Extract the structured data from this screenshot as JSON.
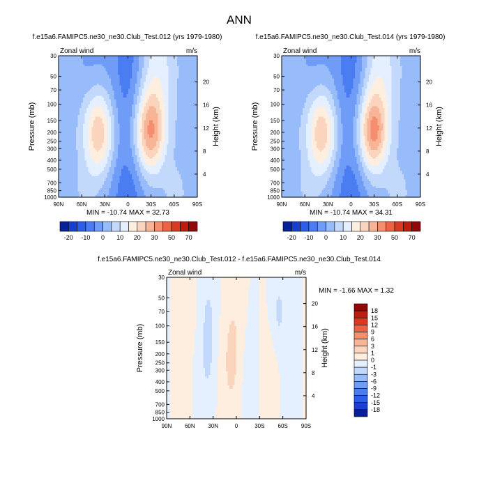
{
  "main_title": "ANN",
  "panels": [
    {
      "title": "f.e15a6.FAMIPC5.ne30_ne30.Club_Test.012 (yrs 1979-1980)",
      "left_string": "Zonal wind",
      "right_string": "m/s",
      "stats": "MIN = -10.74  MAX =  32.73"
    },
    {
      "title": "f.e15a6.FAMIPC5.ne30_ne30.Club_Test.014 (yrs 1979-1980)",
      "left_string": "Zonal wind",
      "right_string": "m/s",
      "stats": "MIN = -10.74  MAX =  34.31"
    },
    {
      "title": "f.e15a6.FAMIPC5.ne30_ne30.Club_Test.012 - f.e15a6.FAMIPC5.ne30_ne30.Club_Test.014",
      "left_string": "Zonal wind",
      "right_string": "m/s",
      "stats": "MIN = -1.66  MAX =  1.32"
    }
  ],
  "axes": {
    "y_label": "Pressure (mb)",
    "y2_label": "Height (km)",
    "x_ticks": [
      "90N",
      "60N",
      "30N",
      "0",
      "30S",
      "60S",
      "90S"
    ],
    "p_ticks": [
      "30",
      "50",
      "70",
      "100",
      "150",
      "200",
      "250",
      "300",
      "400",
      "500",
      "700",
      "850",
      "1000"
    ],
    "h_ticks": [
      "20",
      "16",
      "12",
      "8",
      "4"
    ]
  },
  "colorbar_abs": {
    "labels": [
      "-20",
      "-10",
      "0",
      "10",
      "20",
      "30",
      "50",
      "70"
    ],
    "colors": [
      "#08209a",
      "#1a3fd0",
      "#2c5ee8",
      "#4a7df2",
      "#6e9cf6",
      "#98bcf9",
      "#c3d9fb",
      "#e4efff",
      "#fdeee0",
      "#fbd4bd",
      "#f8b497",
      "#f48e6e",
      "#ec6344",
      "#d93a21",
      "#bb1d0f",
      "#92070a"
    ]
  },
  "colorbar_diff": {
    "labels": [
      "18",
      "15",
      "12",
      "9",
      "6",
      "3",
      "1",
      "0",
      "-1",
      "-3",
      "-6",
      "-9",
      "-12",
      "-15",
      "-18"
    ],
    "colors": [
      "#92070a",
      "#bb1d0f",
      "#d93a21",
      "#ec6344",
      "#f48e6e",
      "#f8b497",
      "#fbd4bd",
      "#fdeee0",
      "#e4efff",
      "#c3d9fb",
      "#98bcf9",
      "#6e9cf6",
      "#4a7df2",
      "#2c5ee8",
      "#1a3fd0",
      "#08209a"
    ]
  },
  "chart_data": [
    {
      "type": "heatmap",
      "title": "f.e15a6.FAMIPC5.ne30_ne30.Club_Test.012 (yrs 1979-1980)",
      "variable": "Zonal wind",
      "units": "m/s",
      "xlabel": "",
      "ylabel": "Pressure (mb)",
      "y2label": "Height (km)",
      "x_range": [
        90,
        -90
      ],
      "y_range": [
        1000,
        30
      ],
      "y_scale": "log",
      "min": -10.74,
      "max": 32.73,
      "features": [
        {
          "name": "southern jet core",
          "lat": -29,
          "pressure": 200,
          "value": 30
        },
        {
          "name": "northern jet core",
          "lat": 37,
          "pressure": 200,
          "value": 22
        },
        {
          "name": "tropical easterlies",
          "lat": 0,
          "pressure": 50,
          "value": -10
        }
      ]
    },
    {
      "type": "heatmap",
      "title": "f.e15a6.FAMIPC5.ne30_ne30.Club_Test.014 (yrs 1979-1980)",
      "variable": "Zonal wind",
      "units": "m/s",
      "xlabel": "",
      "ylabel": "Pressure (mb)",
      "y2label": "Height (km)",
      "x_range": [
        90,
        -90
      ],
      "y_range": [
        1000,
        30
      ],
      "y_scale": "log",
      "min": -10.74,
      "max": 34.31,
      "features": [
        {
          "name": "southern jet core",
          "lat": -29,
          "pressure": 200,
          "value": 30
        },
        {
          "name": "northern jet core",
          "lat": 37,
          "pressure": 200,
          "value": 22
        },
        {
          "name": "tropical easterlies",
          "lat": 0,
          "pressure": 50,
          "value": -10
        }
      ]
    },
    {
      "type": "heatmap",
      "title": "f.e15a6.FAMIPC5.ne30_ne30.Club_Test.012 - f.e15a6.FAMIPC5.ne30_ne30.Club_Test.014",
      "variable": "Zonal wind",
      "units": "m/s",
      "xlabel": "",
      "ylabel": "Pressure (mb)",
      "y2label": "Height (km)",
      "x_range": [
        90,
        -90
      ],
      "y_range": [
        1000,
        30
      ],
      "y_scale": "log",
      "min": -1.66,
      "max": 1.32,
      "features": [
        {
          "name": "positive band",
          "lat": 3,
          "pressure": 150,
          "value": 1
        },
        {
          "name": "negative band",
          "lat": 37,
          "pressure": 100,
          "value": -1
        },
        {
          "name": "negative band",
          "lat": -55,
          "pressure": 70,
          "value": -1
        }
      ]
    }
  ]
}
